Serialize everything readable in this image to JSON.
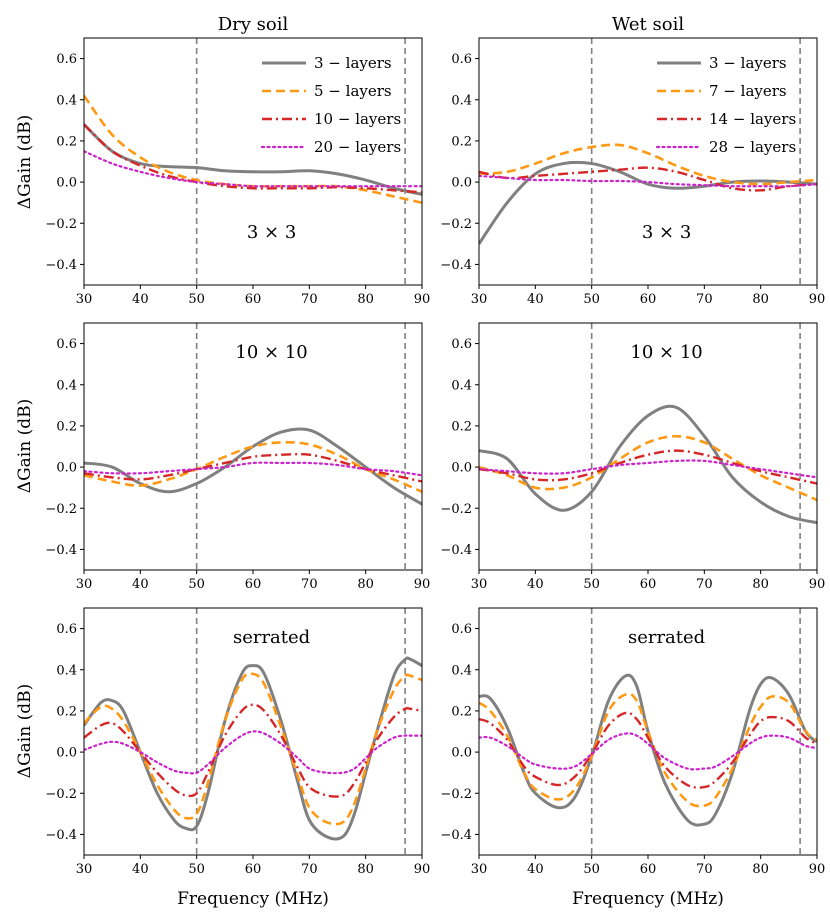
{
  "chart_data": [
    {
      "type": "line",
      "column_title": "Dry soil",
      "annotation": "3 × 3",
      "ylabel": "ΔGain (dB)",
      "xlabel": "",
      "xlim": [
        30,
        90
      ],
      "ylim": [
        -0.5,
        0.7
      ],
      "xticks": [
        30,
        40,
        50,
        60,
        70,
        80,
        90
      ],
      "yticks": [
        -0.4,
        -0.2,
        0.0,
        0.2,
        0.4,
        0.6
      ],
      "xtick_labels": [
        "30",
        "40",
        "50",
        "60",
        "70",
        "80",
        "90"
      ],
      "ytick_labels": [
        "−0.4",
        "−0.2",
        "0.0",
        "0.2",
        "0.4",
        "0.6"
      ],
      "vlines": [
        50,
        87
      ],
      "legend": "top-right",
      "x": [
        30,
        35,
        40,
        45,
        50,
        55,
        60,
        65,
        70,
        75,
        80,
        85,
        90
      ],
      "series": [
        {
          "name": "3 − layers",
          "color": "#808080",
          "style": "solid",
          "values": [
            0.28,
            0.15,
            0.09,
            0.075,
            0.07,
            0.055,
            0.05,
            0.05,
            0.055,
            0.04,
            0.01,
            -0.03,
            -0.06
          ]
        },
        {
          "name": "5 − layers",
          "color": "#ff9914",
          "style": "dashed",
          "values": [
            0.42,
            0.23,
            0.12,
            0.05,
            0.01,
            -0.01,
            -0.02,
            -0.02,
            -0.02,
            -0.02,
            -0.04,
            -0.07,
            -0.1
          ]
        },
        {
          "name": "10 − layers",
          "color": "#d62728",
          "style": "dashdot",
          "values": [
            0.28,
            0.15,
            0.08,
            0.03,
            0.0,
            -0.02,
            -0.03,
            -0.03,
            -0.03,
            -0.025,
            -0.03,
            -0.04,
            -0.05
          ]
        },
        {
          "name": "20 − layers",
          "color": "#cc22cc",
          "style": "dotted",
          "values": [
            0.15,
            0.09,
            0.05,
            0.02,
            0.0,
            -0.01,
            -0.02,
            -0.02,
            -0.02,
            -0.02,
            -0.02,
            -0.02,
            -0.02
          ]
        }
      ]
    },
    {
      "type": "line",
      "column_title": "Wet soil",
      "annotation": "3 × 3",
      "ylabel": "",
      "xlabel": "",
      "xlim": [
        30,
        90
      ],
      "ylim": [
        -0.5,
        0.7
      ],
      "xticks": [
        30,
        40,
        50,
        60,
        70,
        80,
        90
      ],
      "yticks": [
        -0.4,
        -0.2,
        0.0,
        0.2,
        0.4,
        0.6
      ],
      "xtick_labels": [
        "30",
        "40",
        "50",
        "60",
        "70",
        "80",
        "90"
      ],
      "ytick_labels": [
        "−0.4",
        "−0.2",
        "0.0",
        "0.2",
        "0.4",
        "0.6"
      ],
      "vlines": [
        50,
        87
      ],
      "legend": "top-right",
      "x": [
        30,
        35,
        40,
        45,
        50,
        55,
        60,
        65,
        70,
        75,
        80,
        85,
        90
      ],
      "series": [
        {
          "name": "3 − layers",
          "color": "#808080",
          "style": "solid",
          "values": [
            -0.3,
            -0.1,
            0.04,
            0.09,
            0.09,
            0.05,
            -0.01,
            -0.03,
            -0.02,
            0.0,
            0.005,
            0.0,
            -0.01
          ]
        },
        {
          "name": "7 − layers",
          "color": "#ff9914",
          "style": "dashed",
          "values": [
            0.04,
            0.05,
            0.09,
            0.14,
            0.17,
            0.18,
            0.14,
            0.08,
            0.03,
            0.0,
            -0.01,
            0.0,
            0.01
          ]
        },
        {
          "name": "14 − layers",
          "color": "#d62728",
          "style": "dashdot",
          "values": [
            0.05,
            0.02,
            0.03,
            0.04,
            0.05,
            0.06,
            0.07,
            0.05,
            0.01,
            -0.03,
            -0.04,
            -0.02,
            -0.01
          ]
        },
        {
          "name": "28 − layers",
          "color": "#cc22cc",
          "style": "dotted",
          "values": [
            0.03,
            0.02,
            0.01,
            0.01,
            0.005,
            0.005,
            0.0,
            -0.01,
            -0.015,
            -0.02,
            -0.02,
            -0.02,
            -0.01
          ]
        }
      ]
    },
    {
      "type": "line",
      "column_title": "",
      "annotation": "10 × 10",
      "ylabel": "ΔGain (dB)",
      "xlabel": "",
      "xlim": [
        30,
        90
      ],
      "ylim": [
        -0.5,
        0.7
      ],
      "xticks": [
        30,
        40,
        50,
        60,
        70,
        80,
        90
      ],
      "yticks": [
        -0.4,
        -0.2,
        0.0,
        0.2,
        0.4,
        0.6
      ],
      "xtick_labels": [
        "30",
        "40",
        "50",
        "60",
        "70",
        "80",
        "90"
      ],
      "ytick_labels": [
        "−0.4",
        "−0.2",
        "0.0",
        "0.2",
        "0.4",
        "0.6"
      ],
      "vlines": [
        50,
        87
      ],
      "x": [
        30,
        35,
        40,
        45,
        50,
        55,
        60,
        65,
        70,
        75,
        80,
        85,
        90
      ],
      "series": [
        {
          "color": "#808080",
          "style": "solid",
          "values": [
            0.02,
            0.0,
            -0.08,
            -0.12,
            -0.08,
            0.0,
            0.1,
            0.17,
            0.18,
            0.1,
            0.0,
            -0.1,
            -0.18
          ]
        },
        {
          "color": "#ff9914",
          "style": "dashed",
          "values": [
            -0.04,
            -0.07,
            -0.09,
            -0.06,
            -0.01,
            0.05,
            0.1,
            0.12,
            0.11,
            0.06,
            -0.01,
            -0.06,
            -0.12
          ]
        },
        {
          "color": "#d62728",
          "style": "dashdot",
          "values": [
            -0.03,
            -0.05,
            -0.06,
            -0.04,
            -0.01,
            0.02,
            0.05,
            0.06,
            0.06,
            0.03,
            -0.01,
            -0.04,
            -0.07
          ]
        },
        {
          "color": "#cc22cc",
          "style": "dotted",
          "values": [
            -0.02,
            -0.03,
            -0.03,
            -0.02,
            -0.01,
            0.0,
            0.02,
            0.02,
            0.02,
            0.01,
            -0.01,
            -0.02,
            -0.04
          ]
        }
      ]
    },
    {
      "type": "line",
      "column_title": "",
      "annotation": "10 × 10",
      "ylabel": "",
      "xlabel": "",
      "xlim": [
        30,
        90
      ],
      "ylim": [
        -0.5,
        0.7
      ],
      "xticks": [
        30,
        40,
        50,
        60,
        70,
        80,
        90
      ],
      "yticks": [
        -0.4,
        -0.2,
        0.0,
        0.2,
        0.4,
        0.6
      ],
      "xtick_labels": [
        "30",
        "40",
        "50",
        "60",
        "70",
        "80",
        "90"
      ],
      "ytick_labels": [
        "−0.4",
        "−0.2",
        "0.0",
        "0.2",
        "0.4",
        "0.6"
      ],
      "vlines": [
        50,
        87
      ],
      "x": [
        30,
        35,
        40,
        45,
        50,
        55,
        60,
        65,
        70,
        75,
        80,
        85,
        90
      ],
      "series": [
        {
          "color": "#808080",
          "style": "solid",
          "values": [
            0.08,
            0.04,
            -0.13,
            -0.21,
            -0.12,
            0.1,
            0.25,
            0.29,
            0.15,
            -0.05,
            -0.17,
            -0.24,
            -0.27
          ]
        },
        {
          "color": "#ff9914",
          "style": "dashed",
          "values": [
            0.0,
            -0.04,
            -0.1,
            -0.1,
            -0.05,
            0.04,
            0.12,
            0.15,
            0.12,
            0.04,
            -0.04,
            -0.1,
            -0.16
          ]
        },
        {
          "color": "#d62728",
          "style": "dashdot",
          "values": [
            -0.01,
            -0.03,
            -0.06,
            -0.06,
            -0.03,
            0.02,
            0.06,
            0.08,
            0.06,
            0.02,
            -0.02,
            -0.05,
            -0.08
          ]
        },
        {
          "color": "#cc22cc",
          "style": "dotted",
          "values": [
            -0.01,
            -0.02,
            -0.03,
            -0.03,
            -0.01,
            0.01,
            0.02,
            0.03,
            0.03,
            0.01,
            -0.01,
            -0.03,
            -0.05
          ]
        }
      ]
    },
    {
      "type": "line",
      "column_title": "",
      "annotation": "serrated",
      "ylabel": "ΔGain (dB)",
      "xlabel": "Frequency (MHz)",
      "xlim": [
        30,
        90
      ],
      "ylim": [
        -0.5,
        0.7
      ],
      "xticks": [
        30,
        40,
        50,
        60,
        70,
        80,
        90
      ],
      "yticks": [
        -0.4,
        -0.2,
        0.0,
        0.2,
        0.4,
        0.6
      ],
      "xtick_labels": [
        "30",
        "40",
        "50",
        "60",
        "70",
        "80",
        "90"
      ],
      "ytick_labels": [
        "−0.4",
        "−0.2",
        "0.0",
        "0.2",
        "0.4",
        "0.6"
      ],
      "vlines": [
        50,
        87
      ],
      "x": [
        30,
        33,
        35,
        37,
        40,
        43,
        46,
        48,
        50,
        52,
        55,
        58,
        60,
        62,
        65,
        68,
        70,
        73,
        76,
        78,
        80,
        82,
        85,
        87,
        88,
        90
      ],
      "series": [
        {
          "color": "#808080",
          "style": "solid",
          "values": [
            0.13,
            0.24,
            0.25,
            0.2,
            0.0,
            -0.2,
            -0.33,
            -0.37,
            -0.36,
            -0.2,
            0.15,
            0.38,
            0.42,
            0.38,
            0.15,
            -0.15,
            -0.33,
            -0.41,
            -0.41,
            -0.3,
            -0.1,
            0.1,
            0.37,
            0.45,
            0.45,
            0.42
          ]
        },
        {
          "color": "#ff9914",
          "style": "dashed",
          "values": [
            0.14,
            0.22,
            0.21,
            0.15,
            0.0,
            -0.16,
            -0.28,
            -0.32,
            -0.3,
            -0.15,
            0.15,
            0.35,
            0.38,
            0.33,
            0.12,
            -0.12,
            -0.27,
            -0.34,
            -0.34,
            -0.25,
            -0.08,
            0.1,
            0.3,
            0.37,
            0.37,
            0.35
          ]
        },
        {
          "color": "#d62728",
          "style": "dashdot",
          "values": [
            0.07,
            0.13,
            0.14,
            0.1,
            0.0,
            -0.1,
            -0.18,
            -0.21,
            -0.2,
            -0.1,
            0.08,
            0.2,
            0.23,
            0.2,
            0.08,
            -0.08,
            -0.17,
            -0.21,
            -0.21,
            -0.15,
            -0.05,
            0.06,
            0.17,
            0.21,
            0.21,
            0.2
          ]
        },
        {
          "color": "#cc22cc",
          "style": "dotted",
          "values": [
            0.01,
            0.04,
            0.05,
            0.04,
            0.0,
            -0.05,
            -0.09,
            -0.1,
            -0.1,
            -0.06,
            0.02,
            0.08,
            0.1,
            0.09,
            0.04,
            -0.03,
            -0.08,
            -0.1,
            -0.1,
            -0.08,
            -0.03,
            0.02,
            0.07,
            0.08,
            0.08,
            0.08
          ]
        }
      ]
    },
    {
      "type": "line",
      "column_title": "",
      "annotation": "serrated",
      "ylabel": "",
      "xlabel": "Frequency (MHz)",
      "xlim": [
        30,
        90
      ],
      "ylim": [
        -0.5,
        0.7
      ],
      "xticks": [
        30,
        40,
        50,
        60,
        70,
        80,
        90
      ],
      "yticks": [
        -0.4,
        -0.2,
        0.0,
        0.2,
        0.4,
        0.6
      ],
      "xtick_labels": [
        "30",
        "40",
        "50",
        "60",
        "70",
        "80",
        "90"
      ],
      "ytick_labels": [
        "−0.4",
        "−0.2",
        "0.0",
        "0.2",
        "0.4",
        "0.6"
      ],
      "vlines": [
        50,
        87
      ],
      "x": [
        30,
        32,
        35,
        38,
        40,
        44,
        47,
        50,
        53,
        56,
        58,
        60,
        63,
        67,
        70,
        72,
        75,
        78,
        80,
        82,
        85,
        88,
        90
      ],
      "series": [
        {
          "color": "#808080",
          "style": "solid",
          "values": [
            0.27,
            0.26,
            0.12,
            -0.1,
            -0.2,
            -0.27,
            -0.22,
            -0.02,
            0.25,
            0.37,
            0.32,
            0.1,
            -0.15,
            -0.33,
            -0.35,
            -0.3,
            -0.1,
            0.2,
            0.33,
            0.36,
            0.28,
            0.1,
            0.05
          ]
        },
        {
          "color": "#ff9914",
          "style": "dashed",
          "values": [
            0.24,
            0.2,
            0.08,
            -0.1,
            -0.18,
            -0.23,
            -0.18,
            -0.02,
            0.2,
            0.28,
            0.25,
            0.1,
            -0.1,
            -0.24,
            -0.26,
            -0.22,
            -0.08,
            0.12,
            0.22,
            0.27,
            0.24,
            0.1,
            0.06
          ]
        },
        {
          "color": "#d62728",
          "style": "dashdot",
          "values": [
            0.16,
            0.14,
            0.06,
            -0.07,
            -0.12,
            -0.16,
            -0.12,
            -0.01,
            0.13,
            0.19,
            0.16,
            0.07,
            -0.07,
            -0.16,
            -0.17,
            -0.14,
            -0.05,
            0.08,
            0.15,
            0.17,
            0.15,
            0.07,
            0.04
          ]
        },
        {
          "color": "#cc22cc",
          "style": "dotted",
          "values": [
            0.07,
            0.07,
            0.03,
            -0.03,
            -0.06,
            -0.08,
            -0.07,
            -0.01,
            0.06,
            0.09,
            0.08,
            0.04,
            -0.03,
            -0.08,
            -0.08,
            -0.07,
            -0.02,
            0.04,
            0.07,
            0.08,
            0.07,
            0.03,
            0.02
          ]
        }
      ]
    }
  ]
}
